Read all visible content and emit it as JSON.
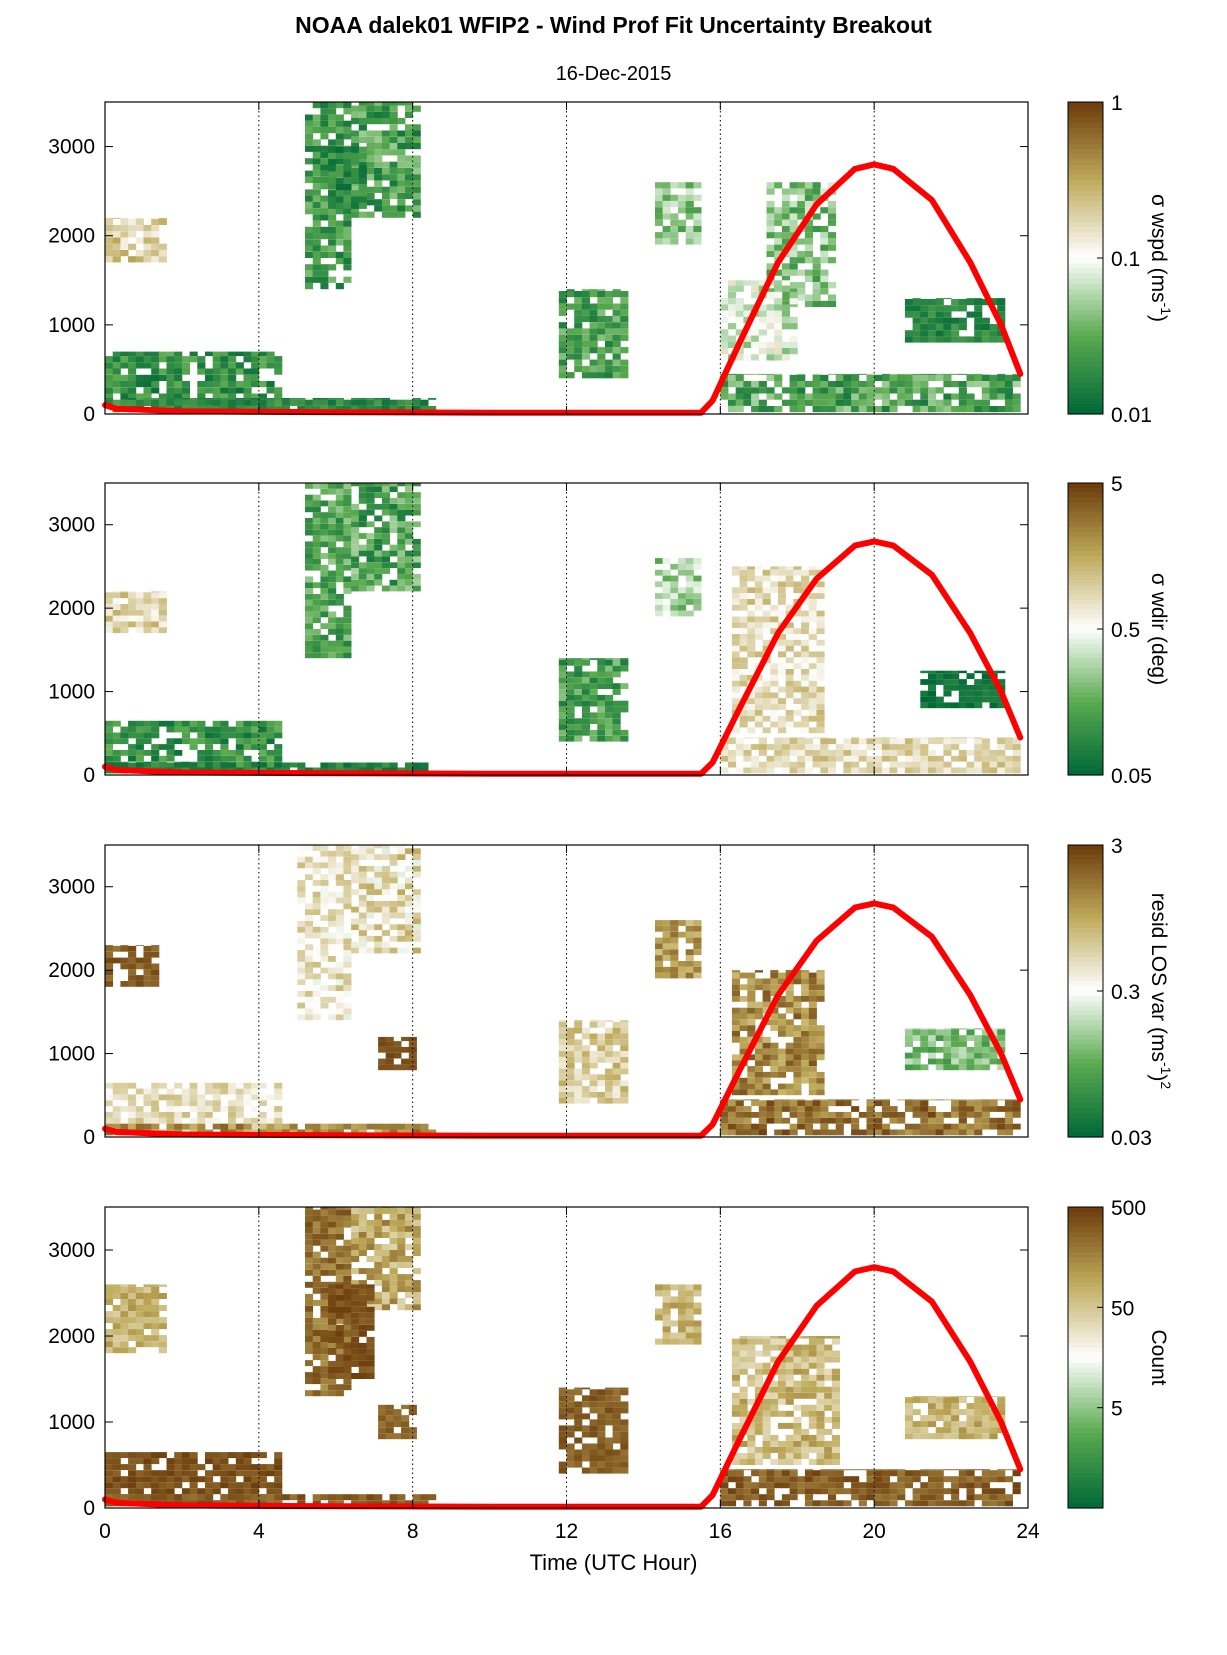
{
  "title": "NOAA dalek01 WFIP2 - Wind Prof Fit Uncertainty Breakout",
  "subtitle": "16-Dec-2015",
  "xlabel": "Time (UTC Hour)",
  "colors": {
    "low": "#006837",
    "mid": "#ffffff",
    "high": "#6b3a0a",
    "curve": "#ff0000"
  },
  "chart_data": [
    {
      "type": "heatmap",
      "panel": 1,
      "xlim": [
        0,
        24
      ],
      "ylim": [
        0,
        3500
      ],
      "x_ticks": [
        0,
        4,
        8,
        12,
        16,
        20,
        24
      ],
      "y_ticks": [
        0,
        1000,
        2000,
        3000
      ],
      "y_tick_labels": [
        "0",
        "1000",
        "2000",
        "3000"
      ],
      "grid": "vertical dotted at 4-hour intervals",
      "colorbar": {
        "scale": "log",
        "min": 0.01,
        "max": 1,
        "ticks": [
          "1",
          "0.1",
          "0.01"
        ],
        "label_main": "σ wspd (ms",
        "label_sup": "-1",
        "label_tail": ")"
      }
    },
    {
      "type": "heatmap",
      "panel": 2,
      "xlim": [
        0,
        24
      ],
      "ylim": [
        0,
        3500
      ],
      "x_ticks": [
        0,
        4,
        8,
        12,
        16,
        20,
        24
      ],
      "y_ticks": [
        0,
        1000,
        2000,
        3000
      ],
      "y_tick_labels": [
        "0",
        "1000",
        "2000",
        "3000"
      ],
      "grid": "vertical dotted at 4-hour intervals",
      "colorbar": {
        "scale": "log",
        "min": 0.05,
        "max": 5,
        "ticks": [
          "5",
          "0.5",
          "0.05"
        ],
        "label_main": "σ wdir (deg)",
        "label_sup": "",
        "label_tail": ""
      }
    },
    {
      "type": "heatmap",
      "panel": 3,
      "xlim": [
        0,
        24
      ],
      "ylim": [
        0,
        3500
      ],
      "x_ticks": [
        0,
        4,
        8,
        12,
        16,
        20,
        24
      ],
      "y_ticks": [
        0,
        1000,
        2000,
        3000
      ],
      "y_tick_labels": [
        "0",
        "1000",
        "2000",
        "3000"
      ],
      "grid": "vertical dotted at 4-hour intervals",
      "colorbar": {
        "scale": "log",
        "min": 0.03,
        "max": 3,
        "ticks": [
          "3",
          "0.3",
          "0.03"
        ],
        "label_main": "resid LOS var (ms",
        "label_sup": "-1",
        "label_tail": ")",
        "label_sup2": "2"
      }
    },
    {
      "type": "heatmap",
      "panel": 4,
      "xlim": [
        0,
        24
      ],
      "ylim": [
        0,
        3500
      ],
      "x_ticks": [
        0,
        4,
        8,
        12,
        16,
        20,
        24
      ],
      "x_tick_labels": [
        "0",
        "4",
        "8",
        "12",
        "16",
        "20",
        "24"
      ],
      "y_ticks": [
        0,
        1000,
        2000,
        3000
      ],
      "y_tick_labels": [
        "0",
        "1000",
        "2000",
        "3000"
      ],
      "grid": "vertical dotted at 4-hour intervals",
      "colorbar": {
        "scale": "log",
        "min": 0.5,
        "max": 500,
        "ticks": [
          "500",
          "50",
          "5"
        ],
        "label_main": "Count",
        "label_sup": "",
        "label_tail": ""
      }
    }
  ],
  "overlay_curve": {
    "description_units": "UTC hour vs height",
    "points": [
      [
        0,
        100
      ],
      [
        0.3,
        60
      ],
      [
        2,
        30
      ],
      [
        6,
        20
      ],
      [
        10,
        15
      ],
      [
        15.5,
        15
      ],
      [
        15.8,
        150
      ],
      [
        16.5,
        800
      ],
      [
        17.5,
        1700
      ],
      [
        18.5,
        2350
      ],
      [
        19.5,
        2750
      ],
      [
        20,
        2800
      ],
      [
        20.5,
        2750
      ],
      [
        21.5,
        2400
      ],
      [
        22.5,
        1700
      ],
      [
        23.3,
        1000
      ],
      [
        23.8,
        450
      ]
    ]
  }
}
